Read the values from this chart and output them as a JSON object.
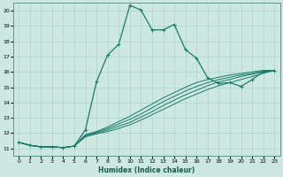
{
  "xlabel": "Humidex (Indice chaleur)",
  "ylabel": "",
  "xlim": [
    -0.5,
    23.5
  ],
  "ylim": [
    10.5,
    20.5
  ],
  "yticks": [
    11,
    12,
    13,
    14,
    15,
    16,
    17,
    18,
    19,
    20
  ],
  "xticks": [
    0,
    1,
    2,
    3,
    4,
    5,
    6,
    7,
    8,
    9,
    10,
    11,
    12,
    13,
    14,
    15,
    16,
    17,
    18,
    19,
    20,
    21,
    22,
    23
  ],
  "bg_color": "#cce8e0",
  "grid_color": "#b0d8d0",
  "line_color": "#1a7a6a",
  "series_main": [
    0,
    11.4,
    1,
    11.2,
    2,
    11.1,
    3,
    11.1,
    4,
    11.05,
    5,
    11.15,
    6,
    12.2,
    7,
    15.35,
    8,
    17.1,
    9,
    17.8,
    10,
    20.35,
    11,
    20.05,
    12,
    18.75,
    13,
    18.75,
    14,
    19.1,
    15,
    17.45,
    16,
    16.9,
    17,
    15.6,
    18,
    15.25,
    19,
    15.3,
    20,
    15.05,
    21,
    15.5,
    22,
    16.0,
    23,
    16.1
  ],
  "series_flat": [
    [
      0,
      11.4,
      1,
      11.2,
      2,
      11.1,
      3,
      11.1,
      4,
      11.05,
      5,
      11.15,
      6,
      11.9,
      7,
      12.1,
      8,
      12.4,
      9,
      12.75,
      10,
      13.1,
      11,
      13.5,
      12,
      13.9,
      13,
      14.3,
      14,
      14.65,
      15,
      15.0,
      16,
      15.3,
      17,
      15.5,
      18,
      15.65,
      19,
      15.8,
      20,
      15.9,
      21,
      16.0,
      22,
      16.1,
      23,
      16.1
    ],
    [
      0,
      11.4,
      1,
      11.2,
      2,
      11.1,
      3,
      11.1,
      4,
      11.05,
      5,
      11.15,
      6,
      11.85,
      7,
      12.05,
      8,
      12.3,
      9,
      12.6,
      10,
      12.9,
      11,
      13.25,
      12,
      13.65,
      13,
      14.05,
      14,
      14.4,
      15,
      14.75,
      16,
      15.05,
      17,
      15.3,
      18,
      15.5,
      19,
      15.65,
      20,
      15.8,
      21,
      15.9,
      22,
      16.05,
      23,
      16.1
    ],
    [
      0,
      11.4,
      1,
      11.2,
      2,
      11.1,
      3,
      11.1,
      4,
      11.05,
      5,
      11.15,
      6,
      11.8,
      7,
      12.0,
      8,
      12.2,
      9,
      12.45,
      10,
      12.7,
      11,
      13.05,
      12,
      13.4,
      13,
      13.8,
      14,
      14.15,
      15,
      14.5,
      16,
      14.8,
      17,
      15.1,
      18,
      15.35,
      19,
      15.5,
      20,
      15.7,
      21,
      15.85,
      22,
      16.0,
      23,
      16.1
    ],
    [
      0,
      11.4,
      1,
      11.2,
      2,
      11.1,
      3,
      11.1,
      4,
      11.05,
      5,
      11.15,
      6,
      11.75,
      7,
      11.95,
      8,
      12.1,
      9,
      12.3,
      10,
      12.55,
      11,
      12.85,
      12,
      13.2,
      13,
      13.55,
      14,
      13.9,
      15,
      14.25,
      16,
      14.55,
      17,
      14.85,
      18,
      15.1,
      19,
      15.3,
      20,
      15.5,
      21,
      15.7,
      22,
      15.9,
      23,
      16.1
    ]
  ]
}
